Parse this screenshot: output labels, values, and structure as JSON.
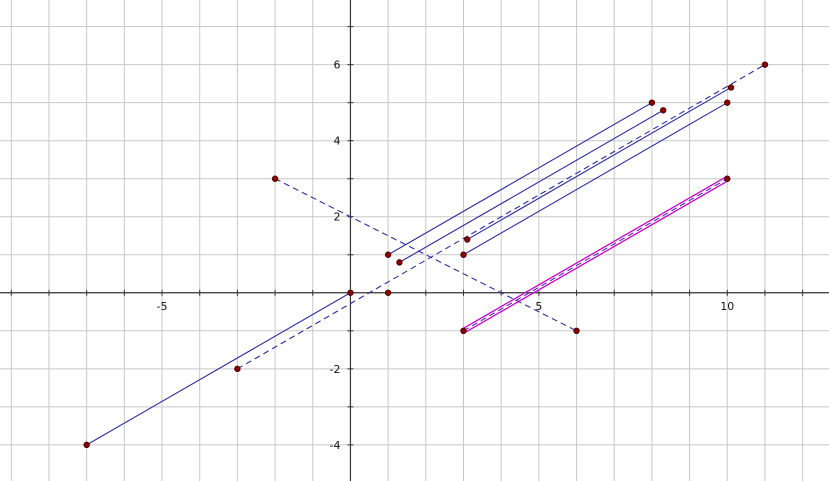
{
  "chart_data": {
    "type": "scatter",
    "title": "",
    "xlabel": "",
    "ylabel": "",
    "xlim": [
      -9.3,
      12.7
    ],
    "ylim": [
      -4.95,
      7.7
    ],
    "grid": true,
    "x_tick_labels": [
      "-5",
      "5",
      "10"
    ],
    "y_tick_labels": [
      "-4",
      "-2",
      "2",
      "4",
      "6"
    ],
    "colors": {
      "grid": "#c8c8c8",
      "axis": "#333333",
      "segment": "#2e2e9e",
      "highlight": "#cc00cc",
      "point_fill": "#8b0000",
      "point_stroke": "#400000"
    },
    "points": [
      {
        "x": -7,
        "y": -4
      },
      {
        "x": 0,
        "y": 0
      },
      {
        "x": -3,
        "y": -2
      },
      {
        "x": -2,
        "y": 3
      },
      {
        "x": 1,
        "y": 1
      },
      {
        "x": 1,
        "y": 0
      },
      {
        "x": 1.3,
        "y": 0.8
      },
      {
        "x": 3,
        "y": 1
      },
      {
        "x": 3.1,
        "y": 1.4
      },
      {
        "x": 3,
        "y": -1
      },
      {
        "x": 6,
        "y": -1
      },
      {
        "x": 8,
        "y": 5
      },
      {
        "x": 8.3,
        "y": 4.8
      },
      {
        "x": 10,
        "y": 5
      },
      {
        "x": 10.1,
        "y": 5.4
      },
      {
        "x": 11,
        "y": 6
      },
      {
        "x": 10,
        "y": 3
      }
    ],
    "segments": [
      {
        "x1": -7,
        "y1": -4,
        "x2": 0,
        "y2": 0,
        "style": "solid",
        "color": "segment"
      },
      {
        "x1": -3,
        "y1": -2,
        "x2": 11,
        "y2": 6,
        "style": "dashed",
        "color": "segment"
      },
      {
        "x1": -2,
        "y1": 3,
        "x2": 6,
        "y2": -1,
        "style": "dashed",
        "color": "segment"
      },
      {
        "x1": 1,
        "y1": 1,
        "x2": 8,
        "y2": 5,
        "style": "solid",
        "color": "segment"
      },
      {
        "x1": 1.3,
        "y1": 0.8,
        "x2": 8.3,
        "y2": 4.8,
        "style": "solid",
        "color": "segment"
      },
      {
        "x1": 3.1,
        "y1": 1.4,
        "x2": 10.1,
        "y2": 5.4,
        "style": "solid",
        "color": "segment"
      },
      {
        "x1": 3,
        "y1": 1,
        "x2": 10,
        "y2": 5,
        "style": "solid",
        "color": "segment"
      },
      {
        "x1": 3,
        "y1": -1,
        "x2": 10,
        "y2": 3,
        "style": "double",
        "color": "highlight"
      }
    ]
  }
}
